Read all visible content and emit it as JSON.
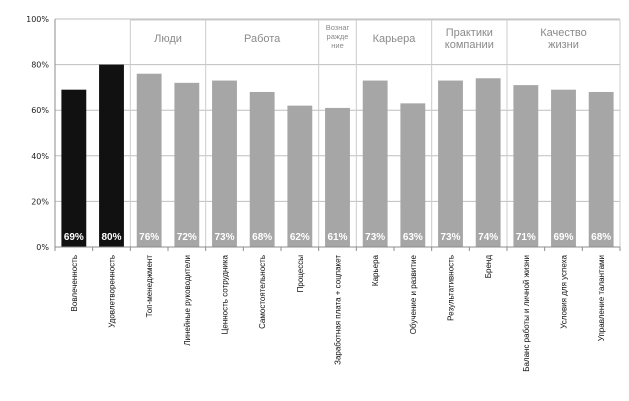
{
  "chart_data": {
    "type": "bar",
    "ylim": [
      0,
      100
    ],
    "yticks": [
      "0%",
      "20%",
      "40%",
      "60%",
      "80%",
      "100%"
    ],
    "grid": true,
    "colors": {
      "highlight": "#111111",
      "default": "#a6a6a6",
      "grid": "#bfbfbf",
      "separator": "#cccccc"
    },
    "categories": [
      "Вовлеченность",
      "Удовлетворенность",
      "Топ-менеджмент",
      "Линейные руководители",
      "Ценность сотрудника",
      "Самостоятельность",
      "Процессы",
      "Заработная плата + соцпакет",
      "Карьера",
      "Обучение и развитие",
      "Результативность",
      "Бренд",
      "Баланс работы и личной жизни",
      "Условия для успеха",
      "Управление талантами"
    ],
    "values": [
      69,
      80,
      76,
      72,
      73,
      68,
      62,
      61,
      73,
      63,
      73,
      74,
      71,
      69,
      68
    ],
    "value_labels": [
      "69%",
      "80%",
      "76%",
      "72%",
      "73%",
      "68%",
      "62%",
      "61%",
      "73%",
      "63%",
      "73%",
      "74%",
      "71%",
      "69%",
      "68%"
    ],
    "highlight": [
      true,
      true,
      false,
      false,
      false,
      false,
      false,
      false,
      false,
      false,
      false,
      false,
      false,
      false,
      false
    ],
    "groups": [
      {
        "lines": [
          "Люди"
        ],
        "start": 2,
        "end": 3,
        "small": false
      },
      {
        "lines": [
          "Работа"
        ],
        "start": 4,
        "end": 6,
        "small": false
      },
      {
        "lines": [
          "Вознаг",
          "ражде",
          "ние"
        ],
        "start": 7,
        "end": 7,
        "small": true
      },
      {
        "lines": [
          "Карьера"
        ],
        "start": 8,
        "end": 9,
        "small": false
      },
      {
        "lines": [
          "Практики",
          "компании"
        ],
        "start": 10,
        "end": 11,
        "small": false
      },
      {
        "lines": [
          "Качество",
          "жизни"
        ],
        "start": 12,
        "end": 14,
        "small": false
      }
    ]
  }
}
